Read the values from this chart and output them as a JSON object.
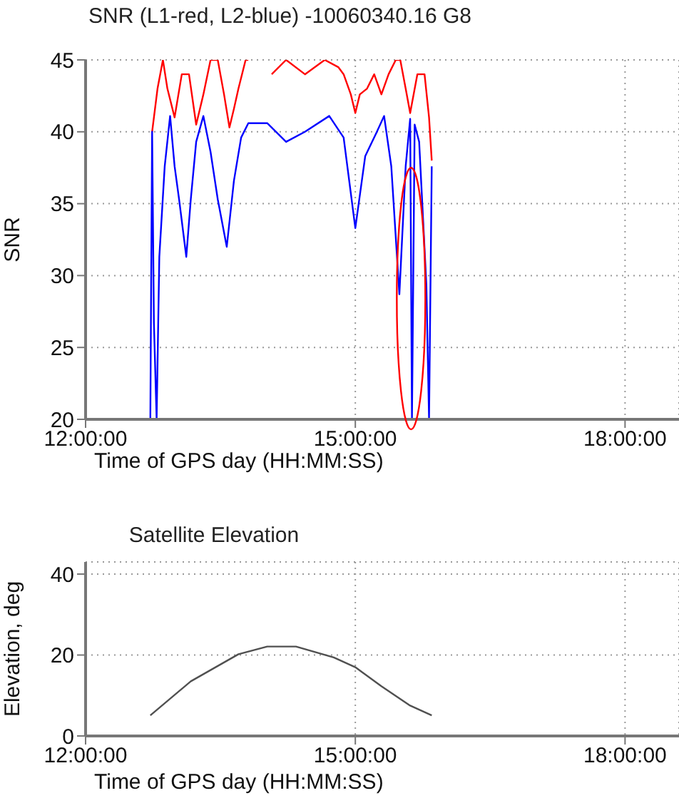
{
  "chart_data": [
    {
      "type": "line",
      "title": "SNR (L1-red, L2-blue) -10060340.16  G8",
      "xlabel": "Time of GPS day (HH:MM:SS)",
      "ylabel": "SNR",
      "xlim": [
        12,
        18.6
      ],
      "xticks": [
        {
          "value": 12,
          "label": "12:00:00"
        },
        {
          "value": 15,
          "label": "15:00:00"
        },
        {
          "value": 18,
          "label": "18:00:00"
        }
      ],
      "ylim": [
        20,
        45
      ],
      "yticks": [
        20,
        25,
        30,
        35,
        40,
        45
      ],
      "grid": true,
      "line_style": "solid",
      "marker": "none",
      "series": [
        {
          "color": "#ff0000",
          "x": [
            12.74,
            12.8,
            12.86,
            12.91,
            12.99,
            13.07,
            13.15,
            13.23,
            13.31,
            13.39,
            13.47,
            13.54,
            13.6,
            13.65,
            13.7,
            13.78,
            13.81,
            13.9,
            14.07,
            14.23,
            14.44,
            14.66,
            14.81,
            14.87,
            14.95,
            15.0,
            15.05,
            15.13,
            15.21,
            15.29,
            15.37,
            15.45,
            15.5,
            15.56,
            15.61,
            15.69,
            15.77,
            15.82,
            15.85
          ],
          "values": [
            40,
            43,
            45,
            43,
            41,
            44,
            44,
            40.5,
            42.6,
            45,
            45,
            42.6,
            40.3,
            41.6,
            43,
            45,
            45,
            null,
            44,
            45,
            44,
            45,
            44.5,
            44,
            42.6,
            41.3,
            42.6,
            43,
            44,
            42.6,
            44,
            45,
            45,
            43,
            41.3,
            44,
            44,
            41,
            38
          ]
        },
        {
          "color": "#0000ff",
          "x": [
            12.72,
            12.74,
            12.76,
            12.79,
            12.82,
            12.88,
            12.94,
            12.99,
            13.04,
            13.12,
            13.17,
            13.23,
            13.31,
            13.39,
            13.47,
            13.57,
            13.65,
            13.73,
            13.81,
            14.02,
            14.23,
            14.44,
            14.71,
            14.87,
            15.0,
            15.11,
            15.24,
            15.32,
            15.4,
            15.49,
            15.56,
            15.61,
            15.63,
            15.66,
            15.71,
            15.79,
            15.82,
            15.85
          ],
          "values": [
            20,
            40,
            26.7,
            20,
            31.3,
            37.6,
            41.1,
            37.6,
            35.3,
            31.3,
            35.3,
            39.3,
            41.1,
            38.6,
            35.3,
            32,
            36.6,
            39.6,
            40.6,
            40.6,
            39.3,
            40,
            41.1,
            39.6,
            33.3,
            38.3,
            40,
            41.1,
            37.6,
            28.7,
            37.6,
            40.9,
            20,
            40.5,
            39.3,
            29.4,
            20,
            37.6
          ]
        }
      ]
    },
    {
      "type": "line",
      "title": "Satellite Elevation",
      "xlabel": "Time of GPS day (HH:MM:SS)",
      "ylabel": "Elevation, deg",
      "xlim": [
        12,
        18.6
      ],
      "xticks": [
        {
          "value": 12,
          "label": "12:00:00"
        },
        {
          "value": 15,
          "label": "15:00:00"
        },
        {
          "value": 18,
          "label": "18:00:00"
        }
      ],
      "ylim": [
        0,
        43
      ],
      "yticks": [
        0,
        20,
        40
      ],
      "grid": true,
      "line_style": "solid",
      "marker": "none",
      "series": [
        {
          "color": "#505050",
          "x": [
            12.72,
            13.17,
            13.7,
            14.02,
            14.34,
            14.76,
            15.0,
            15.29,
            15.61,
            15.85
          ],
          "values": [
            5.1,
            13.5,
            20.2,
            22.1,
            22.1,
            19.4,
            17,
            12.3,
            7.5,
            5.1
          ]
        }
      ]
    }
  ]
}
